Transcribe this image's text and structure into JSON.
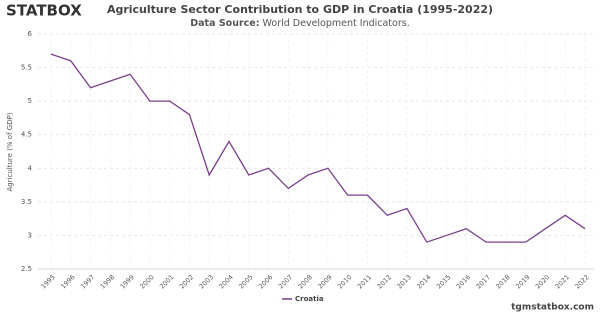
{
  "logo": "STATBOX",
  "footer": "tgmstatbox.com",
  "chart_data": {
    "type": "line",
    "title": "Agriculture Sector Contribution to GDP in Croatia (1995-2022)",
    "source_label": "Data Source:",
    "source": "World Development Indicators.",
    "y_label": "Agriculture (% of GDP)",
    "categories": [
      "1995",
      "1996",
      "1997",
      "1998",
      "1999",
      "2000",
      "2001",
      "2002",
      "2003",
      "2004",
      "2005",
      "2006",
      "2007",
      "2008",
      "2009",
      "2010",
      "2011",
      "2012",
      "2013",
      "2014",
      "2015",
      "2016",
      "2017",
      "2018",
      "2019",
      "2020",
      "2021",
      "2022"
    ],
    "series": [
      {
        "name": "Croatia",
        "color": "#7b3f8c",
        "values": [
          5.7,
          5.6,
          5.2,
          5.3,
          5.4,
          5.0,
          5.0,
          4.8,
          3.9,
          4.4,
          3.9,
          4.0,
          3.7,
          3.9,
          4.0,
          3.6,
          3.6,
          3.3,
          3.4,
          2.9,
          3.0,
          3.1,
          2.9,
          2.9,
          2.9,
          3.1,
          3.3,
          3.1
        ]
      }
    ],
    "ylim": [
      2.5,
      6
    ],
    "yticks": [
      2.5,
      3,
      3.5,
      4,
      4.5,
      5,
      5.5,
      6
    ],
    "grid": true,
    "legend": "bottom"
  }
}
